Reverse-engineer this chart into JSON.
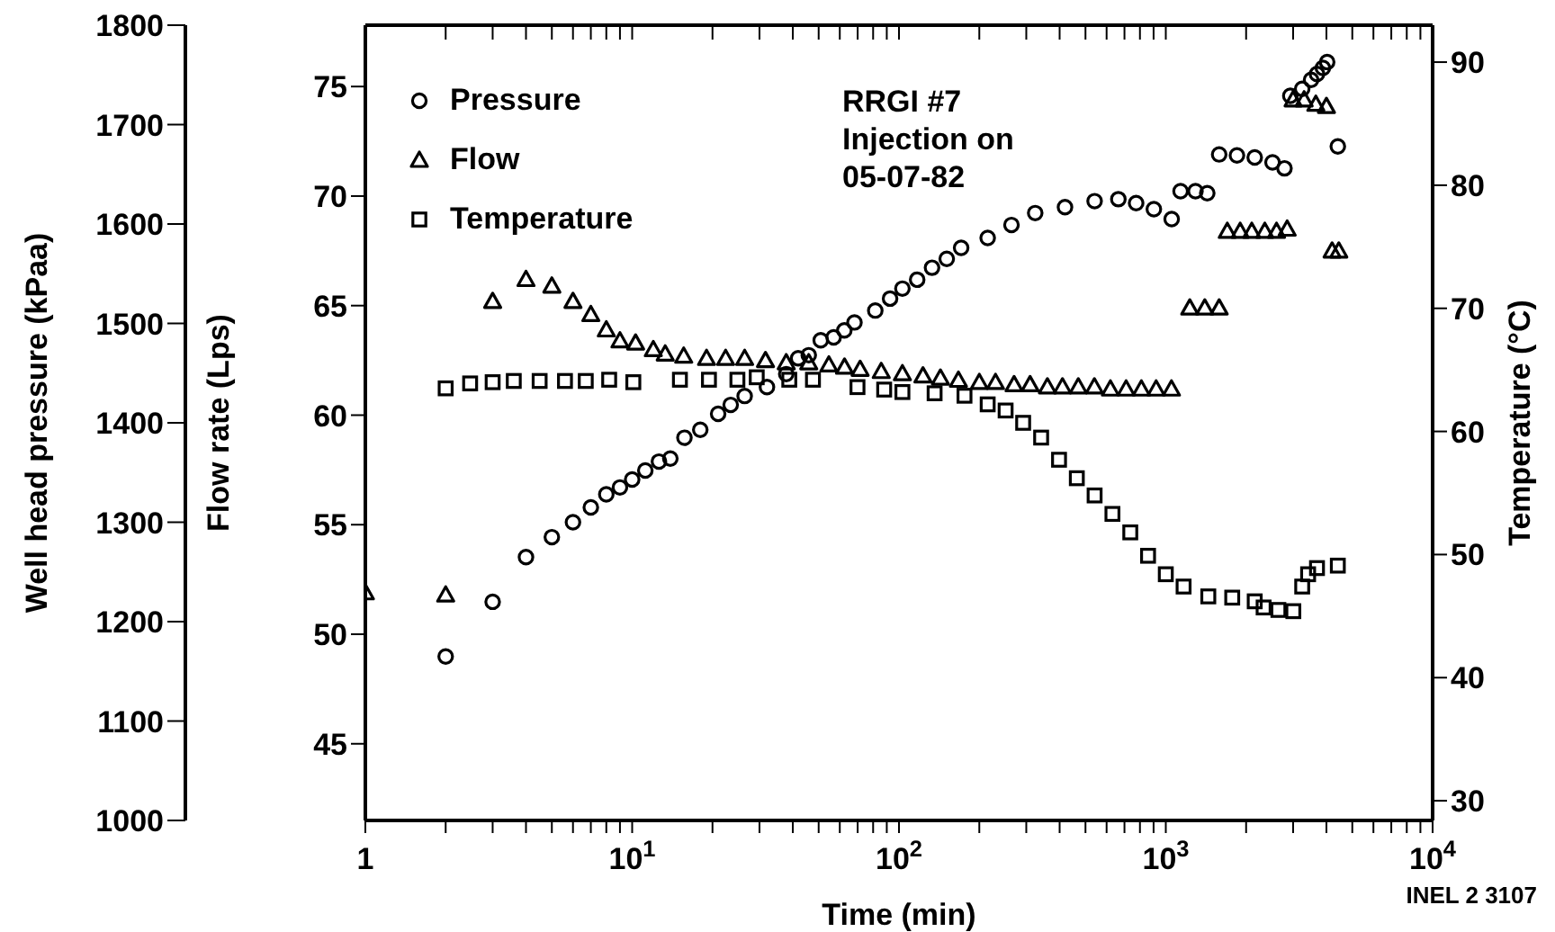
{
  "chart_data": {
    "type": "scatter",
    "xlabel": "Time (min)",
    "ylabel": "Well head pressure (kPaa)",
    "y2label": "Temperature (°C)",
    "y3label": "Flow rate (Lps)",
    "annotations": [
      "RRGI #7\nInjection on\n05-07-82",
      "INEL 2 3107"
    ],
    "log": "x",
    "grid": false,
    "legend": "top left",
    "xlim": [
      1,
      10000
    ],
    "xticks": [
      1,
      {
        "value": 2,
        "label": null
      },
      {
        "value": 3,
        "label": null
      },
      {
        "value": 4,
        "label": null
      },
      {
        "value": 5,
        "label": null
      },
      {
        "value": 6,
        "label": null
      },
      {
        "value": 7,
        "label": null
      },
      {
        "value": 8,
        "label": null
      },
      {
        "value": 9,
        "label": null
      },
      {
        "value": 10,
        "label": "10$^{1}$"
      },
      {
        "value": 20,
        "label": null
      },
      {
        "value": 30,
        "label": null
      },
      {
        "value": 40,
        "label": null
      },
      {
        "value": 50,
        "label": null
      },
      {
        "value": 60,
        "label": null
      },
      {
        "value": 70,
        "label": null
      },
      {
        "value": 80,
        "label": null
      },
      {
        "value": 90,
        "label": null
      },
      {
        "value": 100,
        "label": "10$^{2}$"
      },
      {
        "value": 200,
        "label": null
      },
      {
        "value": 300,
        "label": null
      },
      {
        "value": 400,
        "label": null
      },
      {
        "value": 500,
        "label": null
      },
      {
        "value": 600,
        "label": null
      },
      {
        "value": 700,
        "label": null
      },
      {
        "value": 800,
        "label": null
      },
      {
        "value": 900,
        "label": null
      },
      {
        "value": 1000,
        "label": "10$^{3}$"
      },
      {
        "value": 2000,
        "label": null
      },
      {
        "value": 3000,
        "label": null
      },
      {
        "value": 4000,
        "label": null
      },
      {
        "value": 5000,
        "label": null
      },
      {
        "value": 6000,
        "label": null
      },
      {
        "value": 7000,
        "label": null
      },
      {
        "value": 8000,
        "label": null
      },
      {
        "value": 9000,
        "label": null
      },
      {
        "value": 10000,
        "label": "10$^{4}$"
      }
    ],
    "ylim": [
      1000,
      1800
    ],
    "yticks": [
      1000,
      1100,
      1200,
      1300,
      1400,
      1500,
      1600,
      1700,
      1800
    ],
    "y2lim": [
      28.4,
      93
    ],
    "y2ticks": [
      30,
      40,
      50,
      60,
      70,
      80,
      90
    ],
    "y3lim": [
      41.5,
      77.8
    ],
    "y3ticks": [
      45,
      50,
      55,
      60,
      65,
      70,
      75
    ],
    "series": [
      {
        "name": "Pressure",
        "color": "#000000",
        "marker": "circle",
        "axis": "y",
        "x": [
          2,
          3,
          4,
          5,
          6,
          7,
          8,
          9,
          10,
          11.2,
          12.6,
          13.9,
          15.7,
          18,
          21,
          23.4,
          26.4,
          32,
          37.8,
          41.9,
          45.9,
          50.9,
          56.9,
          62.4,
          68.1,
          81.5,
          92.6,
          103,
          117,
          133,
          151,
          171,
          215,
          264,
          324,
          419,
          541,
          664,
          774,
          902,
          1052,
          1136,
          1292,
          1430,
          1585,
          1848,
          2154,
          2512,
          2785,
          2929,
          3245,
          3505,
          3687,
          3879,
          4025,
          4413
        ],
        "values": [
          1165,
          1220,
          1265,
          1285,
          1300,
          1315,
          1328,
          1335,
          1343,
          1352,
          1361,
          1364,
          1385,
          1393,
          1409,
          1418,
          1427,
          1436,
          1449,
          1465,
          1468,
          1483,
          1486,
          1493,
          1501,
          1513,
          1525,
          1535,
          1544,
          1556,
          1565,
          1576,
          1586,
          1599,
          1611,
          1617,
          1623,
          1625,
          1621,
          1615,
          1605,
          1633,
          1633,
          1631,
          1670,
          1669,
          1667,
          1662,
          1656,
          1729,
          1736,
          1745,
          1751,
          1757,
          1763,
          1678
        ]
      },
      {
        "name": "Flow",
        "color": "#000000",
        "marker": "triangle",
        "axis": "y3",
        "x": [
          1,
          2,
          3,
          4,
          5,
          6,
          7,
          8,
          9,
          10.3,
          12,
          13.3,
          15.6,
          19,
          22.4,
          26.4,
          31.6,
          37.8,
          45.9,
          54.6,
          62.5,
          71.5,
          85.8,
          103,
          123,
          143,
          167,
          200,
          230,
          270,
          310,
          360,
          410,
          470,
          540,
          620,
          710,
          810,
          920,
          1050,
          1230,
          1400,
          1585,
          1700,
          1900,
          2100,
          2350,
          2600,
          2850,
          3000,
          3300,
          3650,
          4000,
          4200,
          4450
        ],
        "values": [
          51.9,
          51.8,
          65.2,
          66.2,
          65.9,
          65.2,
          64.6,
          63.9,
          63.4,
          63.3,
          63.0,
          62.8,
          62.7,
          62.6,
          62.6,
          62.6,
          62.5,
          62.4,
          62.4,
          62.3,
          62.2,
          62.1,
          62.0,
          61.9,
          61.8,
          61.7,
          61.6,
          61.5,
          61.5,
          61.4,
          61.4,
          61.3,
          61.3,
          61.3,
          61.3,
          61.2,
          61.2,
          61.2,
          61.2,
          61.2,
          64.9,
          64.9,
          64.9,
          68.4,
          68.4,
          68.4,
          68.4,
          68.4,
          68.5,
          74.4,
          74.4,
          74.2,
          74.1,
          67.5,
          67.5
        ]
      },
      {
        "name": "Temperature",
        "color": "#000000",
        "marker": "square",
        "axis": "y2",
        "x": [
          2,
          2.47,
          3,
          3.6,
          4.5,
          5.6,
          6.7,
          8.2,
          10.1,
          15.1,
          19.4,
          24.8,
          29.3,
          38.8,
          47.6,
          69.9,
          88,
          103,
          136,
          176,
          215,
          251,
          292,
          341,
          398,
          464,
          541,
          631,
          736,
          858,
          1000,
          1166,
          1443,
          1774,
          2154,
          2326,
          2642,
          3006,
          3245,
          3415,
          3687,
          4413
        ],
        "values": [
          63.5,
          63.9,
          64.0,
          64.1,
          64.1,
          64.1,
          64.1,
          64.2,
          64.0,
          64.2,
          64.2,
          64.2,
          64.4,
          64.2,
          64.2,
          63.6,
          63.4,
          63.2,
          63.1,
          62.9,
          62.2,
          61.7,
          60.7,
          59.5,
          57.7,
          56.2,
          54.8,
          53.3,
          51.8,
          49.9,
          48.4,
          47.4,
          46.6,
          46.5,
          46.2,
          45.7,
          45.5,
          45.4,
          47.4,
          48.4,
          48.9,
          49.1
        ]
      }
    ]
  }
}
